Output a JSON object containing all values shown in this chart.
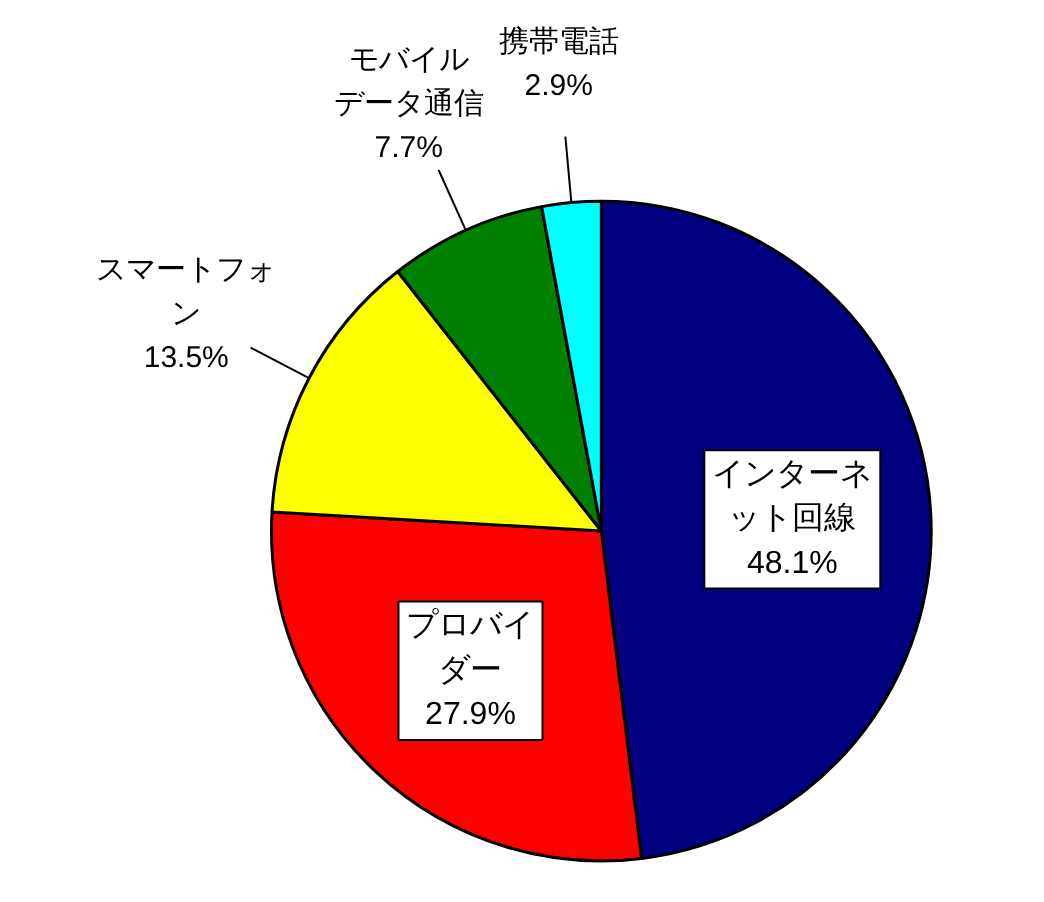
{
  "chart_data": {
    "type": "pie",
    "categories": [
      "インターネット回線",
      "プロバイダー",
      "スマートフォン",
      "モバイルデータ通信",
      "携帯電話"
    ],
    "values": [
      48.1,
      27.9,
      13.5,
      7.7,
      2.9
    ],
    "value_labels": [
      "48.1%",
      "27.9%",
      "13.5%",
      "7.7%",
      "2.9%"
    ],
    "colors": [
      "#000080",
      "#ff0000",
      "#ffff00",
      "#008000",
      "#00ffff"
    ]
  }
}
